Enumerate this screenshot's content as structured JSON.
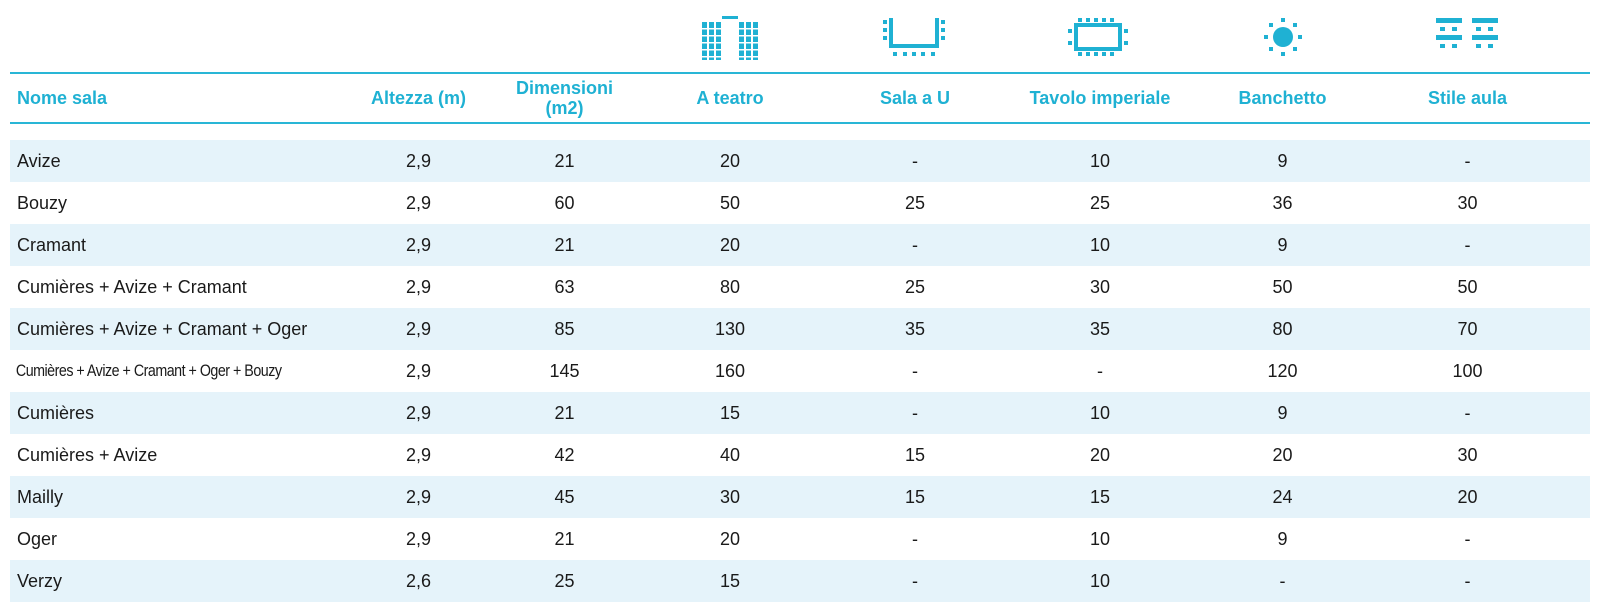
{
  "colors": {
    "accent": "#1fb1d3",
    "row_shade": "#e5f3fa",
    "text": "#1a1a1a"
  },
  "icons": [
    "theatre-icon",
    "u-shape-icon",
    "boardroom-icon",
    "banquet-icon",
    "classroom-icon"
  ],
  "headers": {
    "nome_sala": "Nome sala",
    "altezza": "Altezza (m)",
    "dimensioni": "Dimensioni (m2)",
    "a_teatro": "A teatro",
    "sala_a_u": "Sala a U",
    "tavolo_imperiale": "Tavolo imperiale",
    "banchetto": "Banchetto",
    "stile_aula": "Stile aula"
  },
  "rows": [
    {
      "name": "Avize",
      "altezza": "2,9",
      "dimensioni": "21",
      "teatro": "20",
      "sala_u": "-",
      "imperiale": "10",
      "banchetto": "9",
      "aula": "-"
    },
    {
      "name": "Bouzy",
      "altezza": "2,9",
      "dimensioni": "60",
      "teatro": "50",
      "sala_u": "25",
      "imperiale": "25",
      "banchetto": "36",
      "aula": "30"
    },
    {
      "name": "Cramant",
      "altezza": "2,9",
      "dimensioni": "21",
      "teatro": "20",
      "sala_u": "-",
      "imperiale": "10",
      "banchetto": "9",
      "aula": "-"
    },
    {
      "name": "Cumières + Avize + Cramant",
      "altezza": "2,9",
      "dimensioni": "63",
      "teatro": "80",
      "sala_u": "25",
      "imperiale": "30",
      "banchetto": "50",
      "aula": "50"
    },
    {
      "name": "Cumières + Avize + Cramant + Oger",
      "altezza": "2,9",
      "dimensioni": "85",
      "teatro": "130",
      "sala_u": "35",
      "imperiale": "35",
      "banchetto": "80",
      "aula": "70"
    },
    {
      "name": "Cumières + Avize + Cramant + Oger + Bouzy",
      "altezza": "2,9",
      "dimensioni": "145",
      "teatro": "160",
      "sala_u": "-",
      "imperiale": "-",
      "banchetto": "120",
      "aula": "100"
    },
    {
      "name": "Cumières",
      "altezza": "2,9",
      "dimensioni": "21",
      "teatro": "15",
      "sala_u": "-",
      "imperiale": "10",
      "banchetto": "9",
      "aula": "-"
    },
    {
      "name": "Cumières + Avize",
      "altezza": "2,9",
      "dimensioni": "42",
      "teatro": "40",
      "sala_u": "15",
      "imperiale": "20",
      "banchetto": "20",
      "aula": "30"
    },
    {
      "name": "Mailly",
      "altezza": "2,9",
      "dimensioni": "45",
      "teatro": "30",
      "sala_u": "15",
      "imperiale": "15",
      "banchetto": "24",
      "aula": "20"
    },
    {
      "name": "Oger",
      "altezza": "2,9",
      "dimensioni": "21",
      "teatro": "20",
      "sala_u": "-",
      "imperiale": "10",
      "banchetto": "9",
      "aula": "-"
    },
    {
      "name": "Verzy",
      "altezza": "2,6",
      "dimensioni": "25",
      "teatro": "15",
      "sala_u": "-",
      "imperiale": "10",
      "banchetto": "-",
      "aula": "-"
    }
  ]
}
